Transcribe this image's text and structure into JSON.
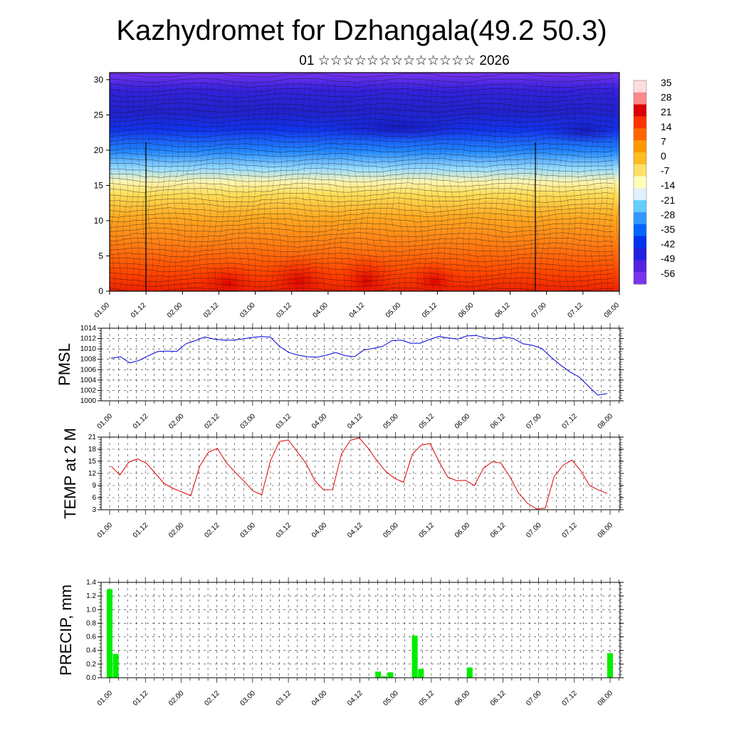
{
  "page": {
    "title": "Kazhydromet for Dzhangala(49.2 50.3)",
    "subtitle": "01 ☆☆☆☆☆☆☆☆☆☆☆☆☆ 2026"
  },
  "colors": {
    "pmsl_line": "#0000dd",
    "temp_line": "#dd0000",
    "precip_bar": "#00ee00",
    "colorbar": [
      "#ffdddd",
      "#ff8888",
      "#dd0000",
      "#ff3300",
      "#ff6600",
      "#ff9900",
      "#ffbb22",
      "#ffe066",
      "#ffffbb",
      "#e0f0ff",
      "#66ccff",
      "#3399ff",
      "#0066ff",
      "#0033ee",
      "#2222dd",
      "#5522dd",
      "#7733ee"
    ]
  },
  "chart_data": [
    {
      "type": "heatmap",
      "name": "cross-section",
      "x_ticks": [
        "01.00",
        "01.12",
        "02.00",
        "02.12",
        "03.00",
        "03.12",
        "04.00",
        "04.12",
        "05.00",
        "05.12",
        "06.00",
        "06.12",
        "07.00",
        "07.12",
        "08.00"
      ],
      "y_ticks": [
        "0",
        "5",
        "10",
        "15",
        "20",
        "25",
        "30"
      ],
      "ylim": [
        0,
        31
      ],
      "colorbar_labels": [
        "35",
        "28",
        "21",
        "14",
        "7",
        "0",
        "-7",
        "-14",
        "-21",
        "-28",
        "-35",
        "-42",
        "-49",
        "-56"
      ]
    },
    {
      "type": "line",
      "name": "PMSL",
      "ylabel": "PMSL",
      "ylim": [
        1000,
        1014
      ],
      "y_ticks": [
        "1000",
        "1002",
        "1004",
        "1006",
        "1008",
        "1010",
        "1012",
        "1014"
      ],
      "x_ticks": [
        "01.00",
        "01.12",
        "02.00",
        "02.12",
        "03.00",
        "03.12",
        "04.00",
        "04.12",
        "05.00",
        "05.12",
        "06.00",
        "06.12",
        "07.00",
        "07.12",
        "08.00"
      ],
      "values": [
        1008.2,
        1008.5,
        1007.3,
        1007.8,
        1008.7,
        1009.5,
        1009.6,
        1009.5,
        1011.0,
        1011.6,
        1012.3,
        1011.9,
        1011.7,
        1011.7,
        1011.9,
        1012.2,
        1012.4,
        1012.3,
        1010.5,
        1009.3,
        1008.8,
        1008.5,
        1008.4,
        1008.8,
        1009.3,
        1008.7,
        1008.5,
        1009.8,
        1010.1,
        1010.5,
        1011.6,
        1011.7,
        1011.1,
        1011.1,
        1011.8,
        1012.4,
        1012.1,
        1011.9,
        1012.5,
        1012.6,
        1012.1,
        1011.9,
        1012.3,
        1012.0,
        1011.0,
        1010.7,
        1010.1,
        1008.4,
        1006.9,
        1005.6,
        1004.6,
        1002.8,
        1001.1,
        1001.4
      ]
    },
    {
      "type": "line",
      "name": "TEMP at 2 M",
      "ylabel": "TEMP at 2 M",
      "ylim": [
        3,
        21
      ],
      "y_ticks": [
        "3",
        "6",
        "9",
        "12",
        "15",
        "18",
        "21"
      ],
      "x_ticks": [
        "01.00",
        "01.12",
        "02.00",
        "02.12",
        "03.00",
        "03.12",
        "04.00",
        "04.12",
        "05.00",
        "05.12",
        "06.00",
        "06.12",
        "07.00",
        "07.12",
        "08.00"
      ],
      "values": [
        13.8,
        11.6,
        14.8,
        15.6,
        14.5,
        12.0,
        9.5,
        8.3,
        7.4,
        6.5,
        13.8,
        17.3,
        18.2,
        14.7,
        12.3,
        10.1,
        7.7,
        6.7,
        15.2,
        19.9,
        20.3,
        17.4,
        14.5,
        10.2,
        7.9,
        8.0,
        16.8,
        20.2,
        20.8,
        18.3,
        15.2,
        12.5,
        10.8,
        9.8,
        16.8,
        19.0,
        19.4,
        15.0,
        11.1,
        10.2,
        10.3,
        9.0,
        13.2,
        14.9,
        14.6,
        11.2,
        7.1,
        4.6,
        3.2,
        3.4,
        11.2,
        14.0,
        15.3,
        12.7,
        9.0,
        7.9,
        7.0
      ]
    },
    {
      "type": "bar",
      "name": "PRECIP",
      "ylabel": "PRECIP, mm",
      "ylim": [
        0,
        1.4
      ],
      "y_ticks": [
        "0.0",
        "0.2",
        "0.4",
        "0.6",
        "0.8",
        "1.0",
        "1.2",
        "1.4"
      ],
      "x_ticks": [
        "01.00",
        "01.12",
        "02.00",
        "02.12",
        "03.00",
        "03.12",
        "04.00",
        "04.12",
        "05.00",
        "05.12",
        "06.00",
        "06.12",
        "07.00",
        "07.12",
        "08.00"
      ],
      "values": [
        1.3,
        0.35,
        0,
        0,
        0,
        0,
        0,
        0,
        0,
        0,
        0,
        0,
        0,
        0,
        0,
        0,
        0,
        0,
        0,
        0,
        0,
        0,
        0,
        0,
        0,
        0,
        0,
        0,
        0,
        0,
        0,
        0,
        0,
        0,
        0,
        0,
        0,
        0,
        0,
        0,
        0,
        0,
        0,
        0,
        0.09,
        0.02,
        0.08,
        0,
        0,
        0,
        0.62,
        0.13,
        0,
        0,
        0,
        0,
        0,
        0,
        0,
        0.15,
        0,
        0,
        0,
        0,
        0,
        0,
        0,
        0,
        0,
        0,
        0,
        0,
        0,
        0,
        0,
        0,
        0,
        0,
        0,
        0,
        0,
        0,
        0.36
      ]
    }
  ]
}
